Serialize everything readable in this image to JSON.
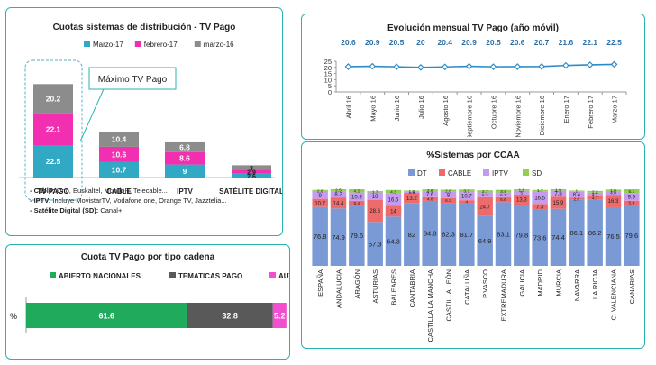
{
  "chart_data": [
    {
      "type": "bar",
      "stacked": true,
      "title": "Cuotas sistemas de distribución - TV Pago",
      "categories": [
        "TV PAGO",
        "CABLE",
        "IPTV",
        "SATÉLITE DIGITAL"
      ],
      "series": [
        {
          "name": "Marzo-17",
          "color": "#31a9c5",
          "values": [
            22.5,
            10.7,
            9,
            2.6
          ]
        },
        {
          "name": "febrero-17",
          "color": "#f12fb0",
          "values": [
            22.1,
            10.6,
            8.6,
            2.9
          ]
        },
        {
          "name": "marzo-16",
          "color": "#8c8c8c",
          "values": [
            20.2,
            10.4,
            6.8,
            3
          ]
        }
      ],
      "callout": "Máximo TV Pago",
      "notes": [
        {
          "key": "- Cable:",
          "text": " Ono, Euskaltel, MundoR, Telecable..."
        },
        {
          "key": "- IPTV:",
          "text": " Incluye MovistarTV, Vodafone one, Orange TV, Jazztelia..."
        },
        {
          "key": "- Satélite Digital (SD):",
          "text": " Canal+"
        }
      ]
    },
    {
      "type": "line",
      "title": "Evolución mensual TV Pago (año móvil)",
      "x": [
        "Abril 16",
        "Mayo 16",
        "Junio 16",
        "Julio 16",
        "Agosto 16",
        "Septiembre 16",
        "Octubre 16",
        "Noviembre 16",
        "Diciembre 16",
        "Enero 17",
        "Febrero 17",
        "Marzo 17"
      ],
      "values": [
        20.6,
        20.9,
        20.5,
        20,
        20.4,
        20.9,
        20.5,
        20.6,
        20.7,
        21.6,
        22.1,
        22.5
      ],
      "yticks": [
        0,
        5,
        10,
        15,
        20,
        25
      ],
      "ylim": [
        0,
        25
      ],
      "color": "#2e8bc9"
    },
    {
      "type": "bar",
      "stacked": true,
      "orientation": "horizontal",
      "title": "Cuota TV Pago por tipo cadena",
      "category_label": "%",
      "series": [
        {
          "name": "ABIERTO NACIONALES",
          "color": "#1faa5c",
          "value": 61.6
        },
        {
          "name": "TEMATICAS PAGO",
          "color": "#595959",
          "value": 32.8
        },
        {
          "name": "AUT",
          "color": "#f24fd0",
          "value": 5.2
        }
      ]
    },
    {
      "type": "bar",
      "stacked": true,
      "title": "%Sistemas por CCAA",
      "categories": [
        "ESPAÑA",
        "ANDALUCIA",
        "ARAGÓN",
        "ASTURIAS",
        "BALEARES",
        "CANTABRIA",
        "CASTILLA LA MANCHA",
        "CASTILLA LEÓN",
        "CATALUÑA",
        "P.VASCO",
        "EXTREMADURA",
        "GALICIA",
        "MADRID",
        "MURCIA",
        "NAVARRA",
        "LA RIOJA",
        "C. VALENCIANA",
        "CANARIAS"
      ],
      "series": [
        {
          "name": "DT",
          "color": "#7a9ad6",
          "values": [
            76.8,
            74.9,
            79.5,
            57.3,
            64.3,
            82,
            84.8,
            82.3,
            81.7,
            64.9,
            83.1,
            79.8,
            73.6,
            74.4,
            86.1,
            86.2,
            76.5,
            79.6
          ]
        },
        {
          "name": "CABLE",
          "color": "#ee6b6b",
          "values": [
            10.7,
            14.4,
            5.4,
            28.6,
            14,
            13.2,
            4.8,
            6.3,
            4,
            24.7,
            6.6,
            13.3,
            7.3,
            15.9,
            2.8,
            4.7,
            16.3,
            5.4
          ]
        },
        {
          "name": "IPTV",
          "color": "#c59bf0",
          "values": [
            9,
            8.2,
            10.9,
            10,
            16.5,
            1.5,
            7.6,
            8,
            10.7,
            6.3,
            6.1,
            5,
            16.5,
            7.8,
            8.4,
            4.7,
            4.9,
            9.9
          ]
        },
        {
          "name": "SD",
          "color": "#92d150",
          "values": [
            2.6,
            2.5,
            4.2,
            1.7,
            4.3,
            1.6,
            2.6,
            2.8,
            3.3,
            2.7,
            3.4,
            1.9,
            1.7,
            1.9,
            1,
            2.2,
            1.9,
            5.1
          ]
        }
      ]
    }
  ]
}
